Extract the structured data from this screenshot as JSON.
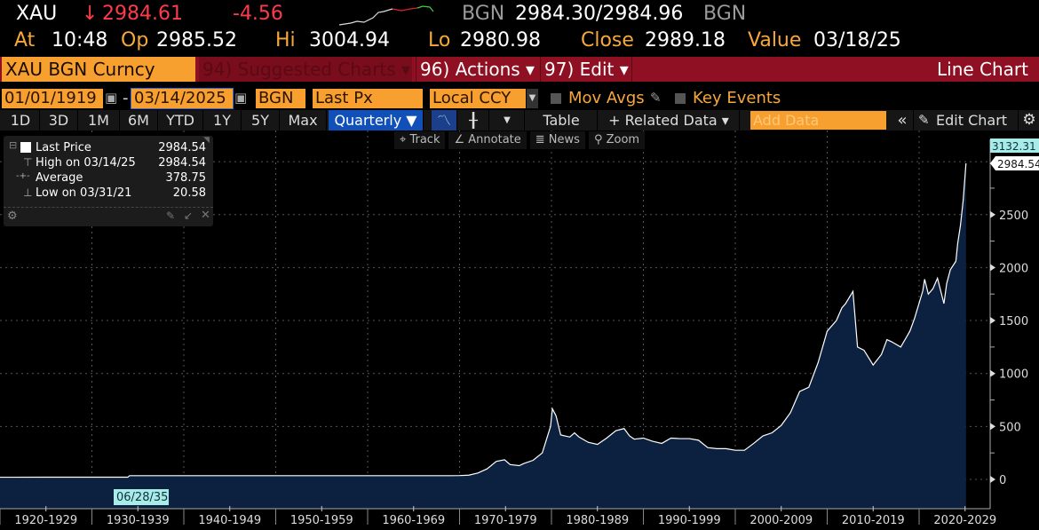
{
  "quote": {
    "ticker": "XAU",
    "arrow": "↓",
    "last": "2984.61",
    "change": "-4.56",
    "source": "BGN",
    "bid_ask": "2984.30/2984.96",
    "source2": "BGN",
    "at_label": "At",
    "time": "10:48",
    "op_label": "Op",
    "open": "2985.52",
    "hi_label": "Hi",
    "high": "3004.94",
    "lo_label": "Lo",
    "low": "2980.98",
    "close_label": "Close",
    "close": "2989.18",
    "value_label": "Value",
    "value_date": "03/18/25"
  },
  "menubar": {
    "security": "XAU BGN Curncy",
    "suggested": "94) Suggested Charts ▾",
    "actions": "96) Actions ▾",
    "edit": "97) Edit ▾",
    "chart_type": "Line Chart"
  },
  "controls": {
    "start_date": "01/01/1919",
    "dash": "-",
    "end_date": "03/14/2025",
    "source": "BGN",
    "field": "Last Px",
    "currency": "Local CCY",
    "mov_avgs": "Mov Avgs",
    "key_events": "Key Events"
  },
  "periods": [
    "1D",
    "3D",
    "1M",
    "6M",
    "YTD",
    "1Y",
    "5Y",
    "Max"
  ],
  "frequency": "Quarterly ▼",
  "toolbar": {
    "table": "Table",
    "related": "+ Related Data ▾",
    "add_data_placeholder": "Add Data",
    "collapse": "«",
    "edit_chart": "Edit Chart"
  },
  "chart_tools": {
    "track": "Track",
    "annotate": "Annotate",
    "news": "News",
    "zoom": "Zoom"
  },
  "legend": {
    "rows": [
      {
        "label": "Last Price",
        "value": "2984.54"
      },
      {
        "label": "High on 03/14/25",
        "value": "2984.54"
      },
      {
        "label": "Average",
        "value": "378.75"
      },
      {
        "label": "Low on 03/31/21",
        "value": "20.58"
      }
    ]
  },
  "colors": {
    "accent": "#f7a030",
    "menubar": "#8f1022",
    "fill": "#0c2140",
    "line": "#ffffff",
    "crosshair_label": "#a8ece8"
  },
  "chart_data": {
    "type": "area",
    "ylim": [
      0,
      3000
    ],
    "y_ticks": [
      0,
      500,
      1000,
      1500,
      2000,
      2500
    ],
    "y_tick_labels": [
      "0",
      "500",
      "1000",
      "1500",
      "2000",
      "2500"
    ],
    "x_tick_labels": [
      "1920-1929",
      "1930-1939",
      "1940-1949",
      "1950-1959",
      "1960-1969",
      "1970-1979",
      "1980-1989",
      "1990-1999",
      "2000-2009",
      "2010-2019",
      "2020-2029"
    ],
    "crosshair_x_label": "06/28/35",
    "crosshair_y_label": "3132.31",
    "last_value_label": "2984.54",
    "grid": true,
    "series": [
      {
        "x": [
          1919,
          1921.2,
          1925,
          1933.9,
          1934.1,
          1969,
          1970,
          1971,
          1972,
          1973,
          1974,
          1974.9,
          1975.5,
          1976.5,
          1977,
          1978,
          1979,
          1979.9,
          1980.1,
          1980.5,
          1981,
          1982,
          1982.5,
          1983,
          1984,
          1985,
          1986,
          1987,
          1987.9,
          1988.5,
          1989,
          1990,
          1991,
          1992,
          1993,
          1994,
          1995,
          1996,
          1997,
          1998,
          1999,
          2000,
          2001,
          2002,
          2003,
          2004,
          2005,
          2006,
          2007,
          2008,
          2009,
          2010,
          2011,
          2011.6,
          2012,
          2012.8,
          2013.3,
          2014,
          2015,
          2015.9,
          2016.5,
          2017,
          2018,
          2019,
          2019.5,
          2020.4,
          2020.6,
          2021,
          2021.5,
          2022,
          2022.7,
          2023,
          2023.4,
          2024,
          2024.2,
          2024.5,
          2024.8,
          2025.1
        ],
        "y": [
          20.67,
          20.58,
          20.67,
          20.67,
          35,
          35,
          36,
          40,
          60,
          100,
          170,
          185,
          140,
          130,
          150,
          180,
          250,
          500,
          667,
          600,
          420,
          400,
          440,
          400,
          350,
          330,
          390,
          460,
          480,
          410,
          380,
          390,
          360,
          340,
          390,
          385,
          385,
          370,
          300,
          290,
          290,
          275,
          275,
          340,
          410,
          440,
          510,
          630,
          830,
          870,
          1100,
          1400,
          1500,
          1620,
          1660,
          1775,
          1250,
          1220,
          1080,
          1180,
          1320,
          1300,
          1250,
          1400,
          1520,
          1780,
          1890,
          1750,
          1800,
          1900,
          1660,
          1850,
          1980,
          2060,
          2230,
          2400,
          2640,
          2984.54
        ]
      }
    ]
  }
}
